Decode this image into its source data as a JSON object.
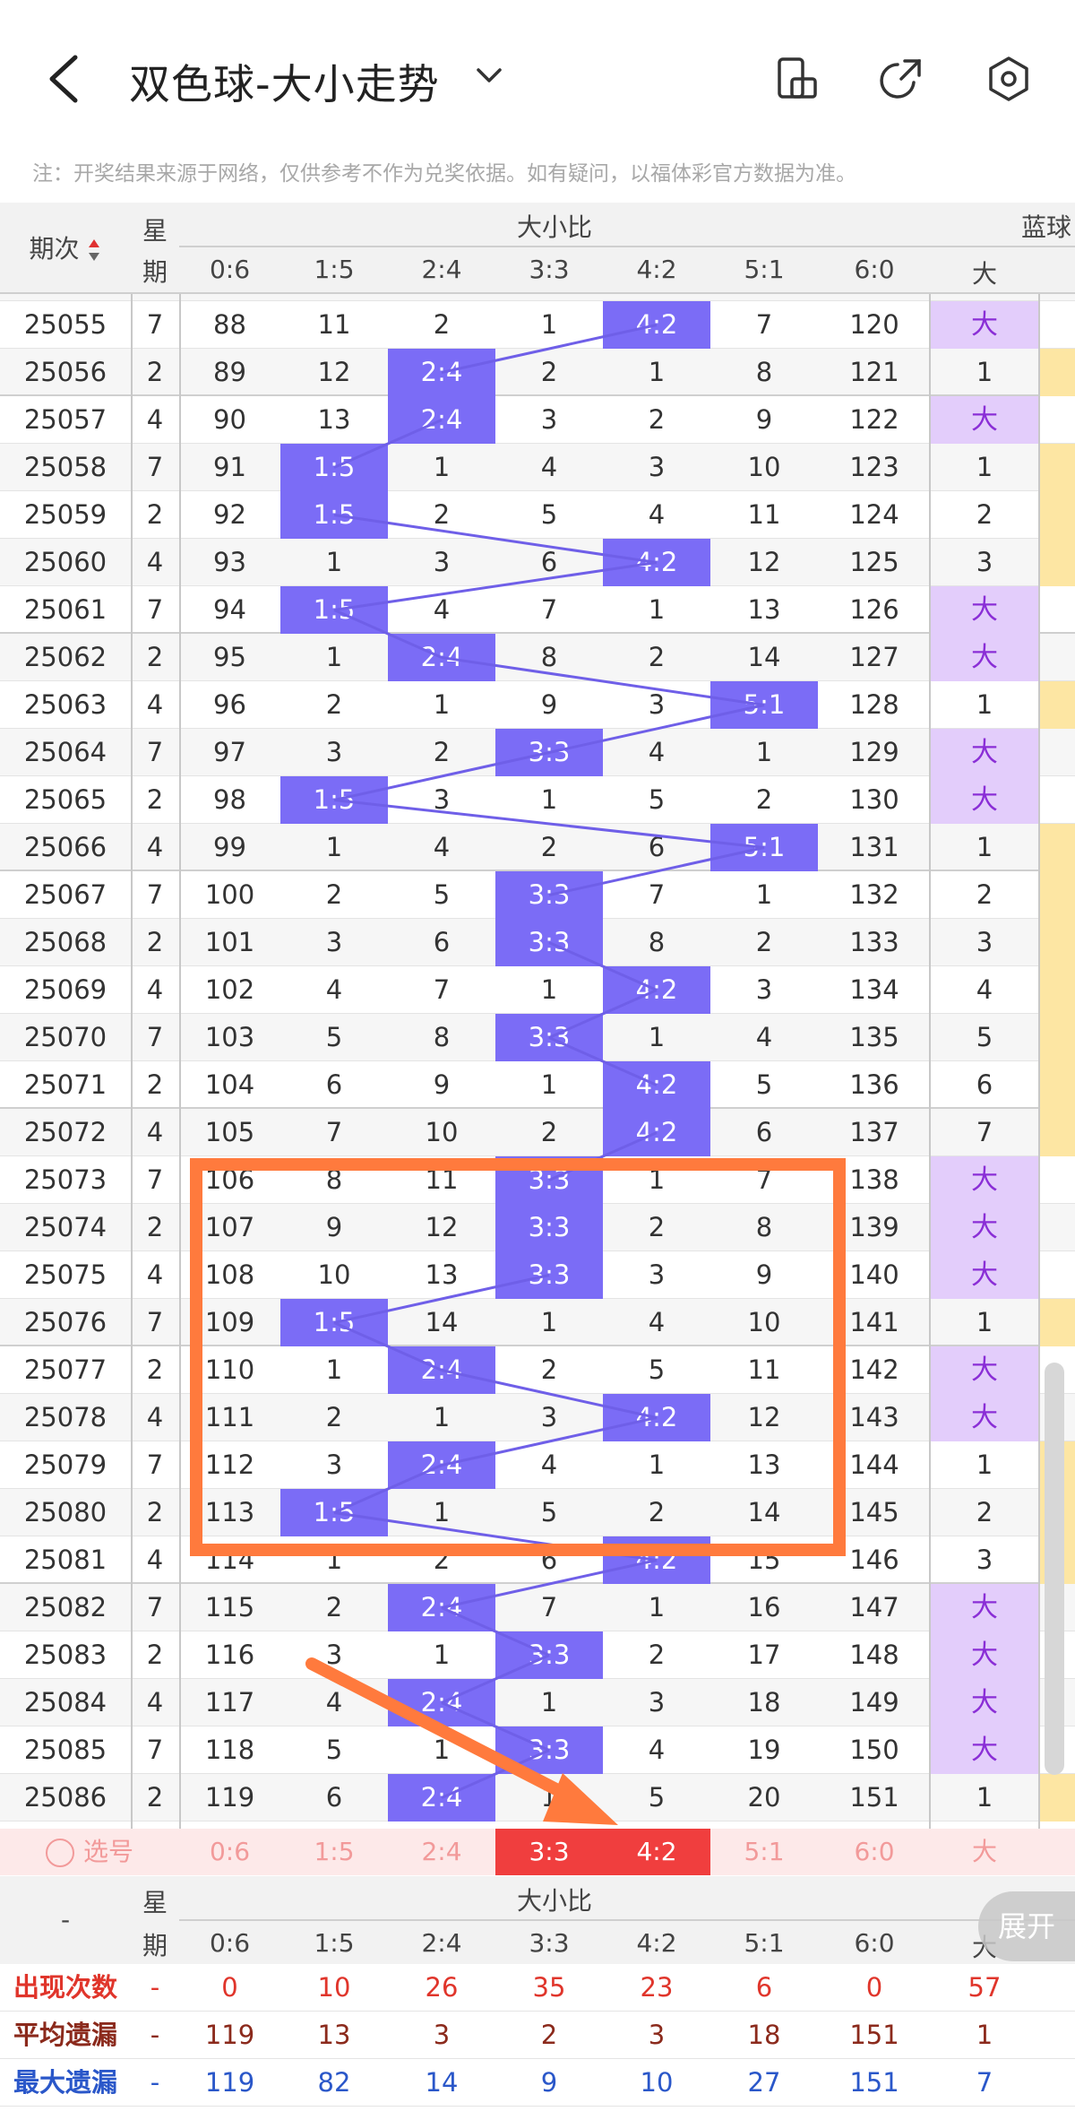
{
  "header": {
    "title": "双色球-大小走势",
    "icons": [
      "back-icon",
      "chevron-down-icon",
      "phone-rotate-icon",
      "share-icon",
      "settings-icon"
    ]
  },
  "notice": "注：开奖结果来源于网络，仅供参考不作为兑奖依据。如有疑问，以福体彩官方数据为准。",
  "columns": {
    "issue": "期次",
    "week_line1": "星",
    "week_line2": "期",
    "group": "大小比",
    "ratios": [
      "0:6",
      "1:5",
      "2:4",
      "3:3",
      "4:2",
      "5:1",
      "6:0"
    ],
    "blue_group": "蓝球",
    "blue_col": "大"
  },
  "colors": {
    "accent": "#7b6cf6",
    "hit": "#f03e3e",
    "orange": "#ff7a3d",
    "blue_big_bg": "#e3cdfb",
    "yellow": "#fde6a3"
  },
  "rows": [
    {
      "issue": "25055",
      "week": "7",
      "vals": [
        "88",
        "11",
        "2",
        "1",
        "4:2",
        "7",
        "120"
      ],
      "hit": 4,
      "blue": "大"
    },
    {
      "issue": "25056",
      "week": "2",
      "vals": [
        "89",
        "12",
        "2:4",
        "2",
        "1",
        "8",
        "121"
      ],
      "hit": 2,
      "blue": "1"
    },
    {
      "issue": "25057",
      "week": "4",
      "vals": [
        "90",
        "13",
        "2:4",
        "3",
        "2",
        "9",
        "122"
      ],
      "hit": 2,
      "blue": "大"
    },
    {
      "issue": "25058",
      "week": "7",
      "vals": [
        "91",
        "1:5",
        "1",
        "4",
        "3",
        "10",
        "123"
      ],
      "hit": 1,
      "blue": "1"
    },
    {
      "issue": "25059",
      "week": "2",
      "vals": [
        "92",
        "1:5",
        "2",
        "5",
        "4",
        "11",
        "124"
      ],
      "hit": 1,
      "blue": "2"
    },
    {
      "issue": "25060",
      "week": "4",
      "vals": [
        "93",
        "1",
        "3",
        "6",
        "4:2",
        "12",
        "125"
      ],
      "hit": 4,
      "blue": "3"
    },
    {
      "issue": "25061",
      "week": "7",
      "vals": [
        "94",
        "1:5",
        "4",
        "7",
        "1",
        "13",
        "126"
      ],
      "hit": 1,
      "blue": "大"
    },
    {
      "issue": "25062",
      "week": "2",
      "vals": [
        "95",
        "1",
        "2:4",
        "8",
        "2",
        "14",
        "127"
      ],
      "hit": 2,
      "blue": "大"
    },
    {
      "issue": "25063",
      "week": "4",
      "vals": [
        "96",
        "2",
        "1",
        "9",
        "3",
        "5:1",
        "128"
      ],
      "hit": 5,
      "blue": "1"
    },
    {
      "issue": "25064",
      "week": "7",
      "vals": [
        "97",
        "3",
        "2",
        "3:3",
        "4",
        "1",
        "129"
      ],
      "hit": 3,
      "blue": "大"
    },
    {
      "issue": "25065",
      "week": "2",
      "vals": [
        "98",
        "1:5",
        "3",
        "1",
        "5",
        "2",
        "130"
      ],
      "hit": 1,
      "blue": "大"
    },
    {
      "issue": "25066",
      "week": "4",
      "vals": [
        "99",
        "1",
        "4",
        "2",
        "6",
        "5:1",
        "131"
      ],
      "hit": 5,
      "blue": "1"
    },
    {
      "issue": "25067",
      "week": "7",
      "vals": [
        "100",
        "2",
        "5",
        "3:3",
        "7",
        "1",
        "132"
      ],
      "hit": 3,
      "blue": "2"
    },
    {
      "issue": "25068",
      "week": "2",
      "vals": [
        "101",
        "3",
        "6",
        "3:3",
        "8",
        "2",
        "133"
      ],
      "hit": 3,
      "blue": "3"
    },
    {
      "issue": "25069",
      "week": "4",
      "vals": [
        "102",
        "4",
        "7",
        "1",
        "4:2",
        "3",
        "134"
      ],
      "hit": 4,
      "blue": "4"
    },
    {
      "issue": "25070",
      "week": "7",
      "vals": [
        "103",
        "5",
        "8",
        "3:3",
        "1",
        "4",
        "135"
      ],
      "hit": 3,
      "blue": "5"
    },
    {
      "issue": "25071",
      "week": "2",
      "vals": [
        "104",
        "6",
        "9",
        "1",
        "4:2",
        "5",
        "136"
      ],
      "hit": 4,
      "blue": "6"
    },
    {
      "issue": "25072",
      "week": "4",
      "vals": [
        "105",
        "7",
        "10",
        "2",
        "4:2",
        "6",
        "137"
      ],
      "hit": 4,
      "blue": "7"
    },
    {
      "issue": "25073",
      "week": "7",
      "vals": [
        "106",
        "8",
        "11",
        "3:3",
        "1",
        "7",
        "138"
      ],
      "hit": 3,
      "blue": "大"
    },
    {
      "issue": "25074",
      "week": "2",
      "vals": [
        "107",
        "9",
        "12",
        "3:3",
        "2",
        "8",
        "139"
      ],
      "hit": 3,
      "blue": "大"
    },
    {
      "issue": "25075",
      "week": "4",
      "vals": [
        "108",
        "10",
        "13",
        "3:3",
        "3",
        "9",
        "140"
      ],
      "hit": 3,
      "blue": "大"
    },
    {
      "issue": "25076",
      "week": "7",
      "vals": [
        "109",
        "1:5",
        "14",
        "1",
        "4",
        "10",
        "141"
      ],
      "hit": 1,
      "blue": "1"
    },
    {
      "issue": "25077",
      "week": "2",
      "vals": [
        "110",
        "1",
        "2:4",
        "2",
        "5",
        "11",
        "142"
      ],
      "hit": 2,
      "blue": "大"
    },
    {
      "issue": "25078",
      "week": "4",
      "vals": [
        "111",
        "2",
        "1",
        "3",
        "4:2",
        "12",
        "143"
      ],
      "hit": 4,
      "blue": "大"
    },
    {
      "issue": "25079",
      "week": "7",
      "vals": [
        "112",
        "3",
        "2:4",
        "4",
        "1",
        "13",
        "144"
      ],
      "hit": 2,
      "blue": "1"
    },
    {
      "issue": "25080",
      "week": "2",
      "vals": [
        "113",
        "1:5",
        "1",
        "5",
        "2",
        "14",
        "145"
      ],
      "hit": 1,
      "blue": "2"
    },
    {
      "issue": "25081",
      "week": "4",
      "vals": [
        "114",
        "1",
        "2",
        "6",
        "4:2",
        "15",
        "146"
      ],
      "hit": 4,
      "blue": "3"
    },
    {
      "issue": "25082",
      "week": "7",
      "vals": [
        "115",
        "2",
        "2:4",
        "7",
        "1",
        "16",
        "147"
      ],
      "hit": 2,
      "blue": "大"
    },
    {
      "issue": "25083",
      "week": "2",
      "vals": [
        "116",
        "3",
        "1",
        "3:3",
        "2",
        "17",
        "148"
      ],
      "hit": 3,
      "blue": "大"
    },
    {
      "issue": "25084",
      "week": "4",
      "vals": [
        "117",
        "4",
        "2:4",
        "1",
        "3",
        "18",
        "149"
      ],
      "hit": 2,
      "blue": "大"
    },
    {
      "issue": "25085",
      "week": "7",
      "vals": [
        "118",
        "5",
        "1",
        "3:3",
        "4",
        "19",
        "150"
      ],
      "hit": 3,
      "blue": "大"
    },
    {
      "issue": "25086",
      "week": "2",
      "vals": [
        "119",
        "6",
        "2:4",
        "1",
        "5",
        "20",
        "151"
      ],
      "hit": 2,
      "blue": "1"
    }
  ],
  "select_row": {
    "label": "选号",
    "ratios": [
      "0:6",
      "1:5",
      "2:4",
      "3:3",
      "4:2",
      "5:1",
      "6:0"
    ],
    "selected": [
      3,
      4
    ],
    "blue": "大"
  },
  "footer": {
    "dash": "-",
    "week_line1": "星",
    "week_line2": "期",
    "group": "大小比",
    "ratios": [
      "0:6",
      "1:5",
      "2:4",
      "3:3",
      "4:2",
      "5:1",
      "6:0"
    ],
    "blue_partial": "大",
    "expand": "展开",
    "stats": [
      {
        "label": "出现次数",
        "week": "-",
        "vals": [
          "0",
          "10",
          "26",
          "35",
          "23",
          "6",
          "0"
        ],
        "blue": "57",
        "color": "#e0352b"
      },
      {
        "label": "平均遗漏",
        "week": "-",
        "vals": [
          "119",
          "13",
          "3",
          "2",
          "3",
          "18",
          "151"
        ],
        "blue": "1",
        "color": "#8b2a1c"
      },
      {
        "label": "最大遗漏",
        "week": "-",
        "vals": [
          "119",
          "82",
          "14",
          "9",
          "10",
          "27",
          "151"
        ],
        "blue": "7",
        "color": "#2a57c9"
      }
    ]
  }
}
